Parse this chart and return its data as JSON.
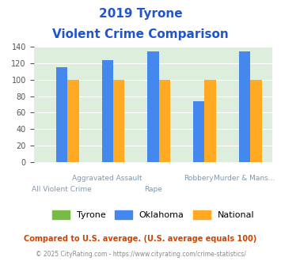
{
  "title_line1": "2019 Tyrone",
  "title_line2": "Violent Crime Comparison",
  "categories": [
    "All Violent Crime",
    "Aggravated Assault",
    "Rape",
    "Robbery",
    "Murder & Mans..."
  ],
  "cat_top": [
    "",
    "Aggravated Assault",
    "",
    "Robbery",
    "Murder & Mans..."
  ],
  "cat_bottom": [
    "All Violent Crime",
    "",
    "Rape",
    "",
    ""
  ],
  "tyrone": [
    0,
    0,
    0,
    0,
    0
  ],
  "oklahoma": [
    115,
    124,
    135,
    74,
    135
  ],
  "national": [
    100,
    100,
    100,
    100,
    100
  ],
  "tyrone_color": "#77bb44",
  "oklahoma_color": "#4488ee",
  "national_color": "#ffaa22",
  "plot_bg": "#ddeedd",
  "ylim": [
    0,
    140
  ],
  "yticks": [
    0,
    20,
    40,
    60,
    80,
    100,
    120,
    140
  ],
  "title_color": "#2255cc",
  "xlabel_color": "#7799bb",
  "footer1": "Compared to U.S. average. (U.S. average equals 100)",
  "footer2": "© 2025 CityRating.com - https://www.cityrating.com/crime-statistics/",
  "footer1_color": "#cc4400",
  "footer2_color": "#888888",
  "legend_labels": [
    "Tyrone",
    "Oklahoma",
    "National"
  ]
}
